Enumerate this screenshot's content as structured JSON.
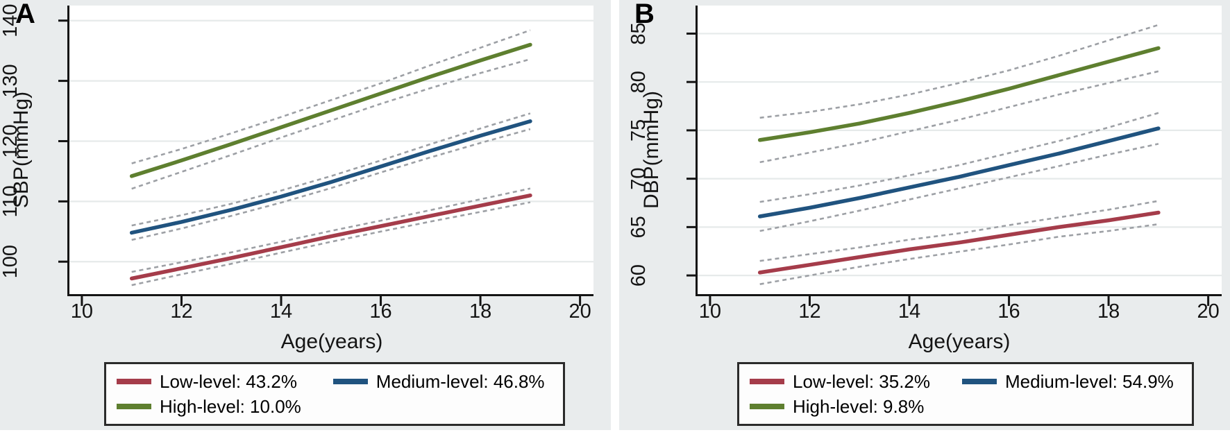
{
  "figure_colors": {
    "low": "#a53c4a",
    "medium": "#20537f",
    "high": "#5e7f2f",
    "ci_dash": "#9da0a5",
    "panel_background": "#e9eced",
    "plot_background": "#ffffff",
    "gridline": "#e6eaea",
    "axis": "#141414"
  },
  "chart_data": [
    {
      "type": "line",
      "panel_label": "A",
      "xlabel": "Age(years)",
      "ylabel": "SBP(mmHg)",
      "x": [
        11,
        12,
        13,
        14,
        15,
        16,
        17,
        18,
        19
      ],
      "xlim": [
        9.75,
        20.27
      ],
      "ylim": [
        94.5,
        142.5
      ],
      "x_ticks": [
        10,
        12,
        14,
        16,
        18,
        20
      ],
      "y_ticks": [
        100,
        110,
        120,
        130,
        140
      ],
      "grid": "horizontal",
      "legend_position": "bottom",
      "series": [
        {
          "name": "low",
          "label": "Low-level: 43.2%",
          "color": "#a53c4a",
          "values": [
            97.2,
            98.9,
            100.6,
            102.4,
            104.2,
            105.9,
            107.6,
            109.3,
            111.0
          ],
          "ci_halfwidth": [
            1.1,
            1.0,
            0.95,
            0.9,
            0.9,
            0.9,
            0.95,
            1.05,
            1.15
          ]
        },
        {
          "name": "medium",
          "label": "Medium-level: 46.8%",
          "color": "#20537f",
          "values": [
            104.8,
            106.6,
            108.6,
            110.8,
            113.2,
            115.8,
            118.4,
            120.9,
            123.3
          ],
          "ci_halfwidth": [
            1.2,
            1.1,
            1.0,
            1.0,
            1.0,
            1.0,
            1.1,
            1.2,
            1.3
          ]
        },
        {
          "name": "high",
          "label": "High-level: 10.0%",
          "color": "#5e7f2f",
          "values": [
            114.2,
            116.8,
            119.5,
            122.3,
            125.1,
            127.9,
            130.7,
            133.4,
            136.0
          ],
          "ci_halfwidth": [
            2.1,
            1.9,
            1.8,
            1.7,
            1.7,
            1.7,
            1.9,
            2.1,
            2.4
          ]
        }
      ]
    },
    {
      "type": "line",
      "panel_label": "B",
      "xlabel": "Age(years)",
      "ylabel": "DBP(mmHg)",
      "x": [
        11,
        12,
        13,
        14,
        15,
        16,
        17,
        18,
        19
      ],
      "xlim": [
        9.75,
        20.27
      ],
      "ylim": [
        58.0,
        87.9
      ],
      "x_ticks": [
        10,
        12,
        14,
        16,
        18,
        20
      ],
      "y_ticks": [
        60,
        65,
        70,
        75,
        80,
        85
      ],
      "grid": "horizontal",
      "legend_position": "bottom",
      "series": [
        {
          "name": "low",
          "label": "Low-level: 35.2%",
          "color": "#a53c4a",
          "values": [
            60.3,
            61.1,
            61.9,
            62.7,
            63.4,
            64.2,
            65.0,
            65.7,
            66.5
          ],
          "ci_halfwidth": [
            1.2,
            1.1,
            1.0,
            1.0,
            0.95,
            1.0,
            1.0,
            1.1,
            1.2
          ]
        },
        {
          "name": "medium",
          "label": "Medium-level: 54.9%",
          "color": "#20537f",
          "values": [
            66.1,
            67.0,
            68.0,
            69.1,
            70.2,
            71.4,
            72.6,
            73.9,
            75.2
          ],
          "ci_halfwidth": [
            1.5,
            1.4,
            1.3,
            1.25,
            1.2,
            1.25,
            1.3,
            1.4,
            1.6
          ]
        },
        {
          "name": "high",
          "label": "High-level: 9.8%",
          "color": "#5e7f2f",
          "values": [
            74.0,
            74.8,
            75.7,
            76.8,
            78.0,
            79.3,
            80.7,
            82.1,
            83.5
          ],
          "ci_halfwidth": [
            2.3,
            2.1,
            2.0,
            1.9,
            1.9,
            1.9,
            2.0,
            2.2,
            2.4
          ]
        }
      ]
    }
  ]
}
